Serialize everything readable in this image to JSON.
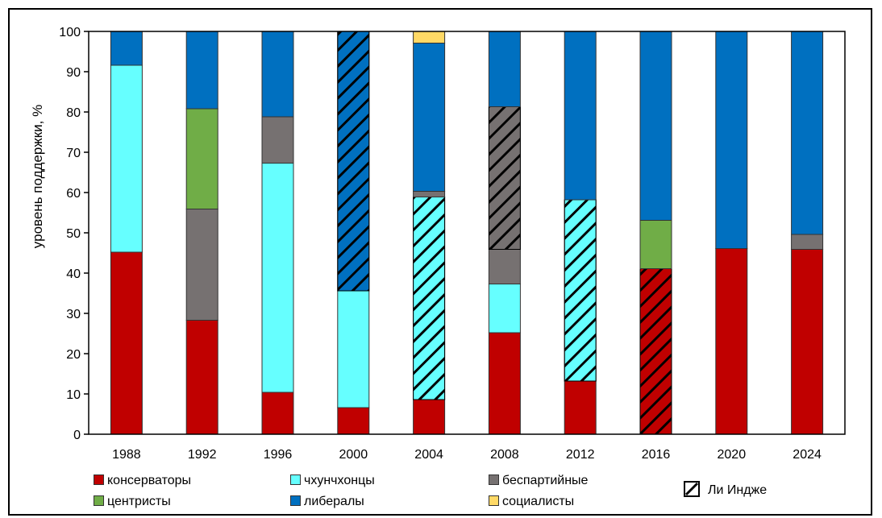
{
  "chart_data": {
    "type": "bar",
    "stacked": true,
    "ylabel": "уровень поддержки, %",
    "ylim": [
      0,
      100
    ],
    "yticks": [
      0,
      10,
      20,
      30,
      40,
      50,
      60,
      70,
      80,
      90,
      100
    ],
    "categories": [
      "1988",
      "1992",
      "1996",
      "2000",
      "2004",
      "2008",
      "2012",
      "2016",
      "2020",
      "2024"
    ],
    "series": [
      {
        "name": "консерваторы",
        "color": "#C00000",
        "values": [
          45.2,
          28.3,
          10.4,
          6.6,
          8.6,
          25.2,
          13.2,
          41.1,
          46.1,
          45.9
        ],
        "hatched": [
          false,
          false,
          false,
          false,
          false,
          false,
          false,
          true,
          false,
          false
        ]
      },
      {
        "name": "чхунчхонцы",
        "color": "#66FFFF",
        "values": [
          46.4,
          0,
          56.9,
          29.0,
          50.3,
          12.1,
          45.0,
          0,
          0,
          0
        ],
        "hatched": [
          false,
          false,
          false,
          false,
          true,
          false,
          true,
          false,
          false,
          false
        ]
      },
      {
        "name": "беспартийные",
        "color": "#767171",
        "values": [
          0,
          27.6,
          11.5,
          0,
          1.4,
          8.6,
          0,
          0,
          0,
          3.7
        ],
        "hatched": [
          false,
          false,
          false,
          false,
          false,
          false,
          false,
          false,
          false,
          false
        ]
      },
      {
        "name": "центристы",
        "color": "#70AD47",
        "values": [
          0,
          24.9,
          0,
          0,
          0,
          0,
          0,
          12.0,
          0,
          0
        ],
        "hatched": [
          false,
          false,
          false,
          false,
          false,
          false,
          false,
          false,
          false,
          false
        ]
      },
      {
        "name": "беспартийные",
        "color": "#767171",
        "values": [
          0,
          0,
          0,
          0,
          0,
          35.4,
          0,
          0,
          0,
          0
        ],
        "hatched": [
          false,
          false,
          false,
          false,
          false,
          true,
          false,
          false,
          false,
          false
        ],
        "legend": false
      },
      {
        "name": "либералы",
        "color": "#0070C0",
        "values": [
          8.4,
          19.2,
          21.2,
          64.4,
          36.8,
          18.7,
          41.8,
          46.9,
          53.9,
          50.4
        ],
        "hatched": [
          false,
          false,
          false,
          true,
          false,
          false,
          false,
          false,
          false,
          false
        ]
      },
      {
        "name": "социалисты",
        "color": "#FFD966",
        "values": [
          0,
          0,
          0,
          0,
          2.9,
          0,
          0,
          0,
          0,
          0
        ],
        "hatched": [
          false,
          false,
          false,
          false,
          false,
          false,
          false,
          false,
          false,
          false
        ]
      }
    ]
  },
  "legend": {
    "items": [
      {
        "label": "консерваторы",
        "color": "#C00000"
      },
      {
        "label": "чхунчхонцы",
        "color": "#66FFFF"
      },
      {
        "label": "беспартийные",
        "color": "#767171"
      },
      {
        "label": "центристы",
        "color": "#70AD47"
      },
      {
        "label": "либералы",
        "color": "#0070C0"
      },
      {
        "label": "социалисты",
        "color": "#FFD966"
      }
    ],
    "hatch_label": "Ли Индже"
  }
}
